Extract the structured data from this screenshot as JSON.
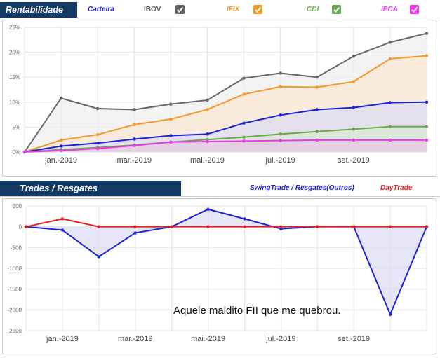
{
  "top_panel": {
    "title": "Rentabilidade (%)",
    "legend": [
      {
        "label": "Carteira",
        "color": "#1a23d9",
        "checkbox": false
      },
      {
        "label": "IBOV",
        "color": "#666666",
        "checkbox": true,
        "checkbox_color": "#616161",
        "icon": "check-icon"
      },
      {
        "label": "IFIX",
        "color": "#f5982b",
        "checkbox": true,
        "checkbox_color": "#f5982b",
        "icon": "check-icon"
      },
      {
        "label": "CDI",
        "color": "#6aa84f",
        "checkbox": true,
        "checkbox_color": "#6aa84f",
        "icon": "check-icon"
      },
      {
        "label": "IPCA",
        "color": "#e839e8",
        "checkbox": true,
        "checkbox_color": "#e839e8",
        "icon": "check-icon"
      }
    ]
  },
  "bottom_panel": {
    "title": "Trades / Resgates",
    "legend": [
      {
        "label": "SwingTrade / Resgates(Outros)",
        "color": "#1a23d9"
      },
      {
        "label": "DayTrade",
        "color": "#e61e1e"
      }
    ],
    "annotation": "Aquele maldito FII que me quebrou."
  },
  "chart_data": [
    {
      "type": "area",
      "x_tick_labels": [
        "jan.-2019",
        "mar.-2019",
        "mai.-2019",
        "jul.-2019",
        "set.-2019"
      ],
      "x_tick_index": [
        1,
        3,
        5,
        7,
        9
      ],
      "x_count": 12,
      "ylim": [
        0,
        25
      ],
      "y_ticks": [
        0,
        5,
        10,
        15,
        20,
        25
      ],
      "y_tick_labels": [
        "0%",
        "5%",
        "10%",
        "15%",
        "20%",
        "25%"
      ],
      "grid": true,
      "series": [
        {
          "name": "IBOV",
          "color": "#666666",
          "fill": "#eeeeee",
          "values": [
            0,
            10.8,
            8.7,
            8.5,
            9.6,
            10.4,
            14.8,
            15.8,
            15.0,
            19.2,
            22.0,
            23.8
          ]
        },
        {
          "name": "IFIX",
          "color": "#f5982b",
          "fill": "#fbe7d1",
          "values": [
            0,
            2.4,
            3.5,
            5.5,
            6.6,
            8.5,
            11.6,
            13.1,
            13.0,
            14.1,
            18.7,
            19.3
          ]
        },
        {
          "name": "Carteira",
          "color": "#1a23d9",
          "fill": "#dcdcf5",
          "values": [
            0,
            1.2,
            1.8,
            2.6,
            3.3,
            3.6,
            5.8,
            7.4,
            8.5,
            8.9,
            9.9,
            10.0
          ]
        },
        {
          "name": "CDI",
          "color": "#6aa84f",
          "fill": "#dbe8d2",
          "values": [
            0,
            0.5,
            0.9,
            1.4,
            2.0,
            2.5,
            3.0,
            3.6,
            4.1,
            4.6,
            5.1,
            5.1
          ]
        },
        {
          "name": "IPCA",
          "color": "#e839e8",
          "fill": "#e6c8e6",
          "values": [
            0,
            0.3,
            0.7,
            1.3,
            2.0,
            2.1,
            2.2,
            2.3,
            2.4,
            2.4,
            2.4,
            2.4
          ]
        }
      ]
    },
    {
      "type": "line",
      "x_tick_labels": [
        "jan.-2019",
        "mar.-2019",
        "mai.-2019",
        "jul.-2019",
        "set.-2019"
      ],
      "x_tick_index": [
        1,
        3,
        5,
        7,
        9
      ],
      "x_count": 12,
      "ylim": [
        -2500,
        500
      ],
      "y_ticks": [
        500,
        0,
        -500,
        -1000,
        -1500,
        -2000,
        -2500
      ],
      "y_tick_labels": [
        "500",
        "0",
        "-500",
        "-1000",
        "-1500",
        "-2000",
        "-2500"
      ],
      "grid": true,
      "series": [
        {
          "name": "SwingTrade / Resgates(Outros)",
          "color": "#1a23d9",
          "fill": "#dcdcf5",
          "values": [
            0,
            -80,
            -720,
            -150,
            0,
            420,
            190,
            -50,
            0,
            0,
            -2110,
            0
          ]
        },
        {
          "name": "DayTrade",
          "color": "#e61e1e",
          "values": [
            0,
            190,
            0,
            0,
            0,
            0,
            0,
            0,
            0,
            0,
            0,
            0
          ]
        }
      ]
    }
  ]
}
